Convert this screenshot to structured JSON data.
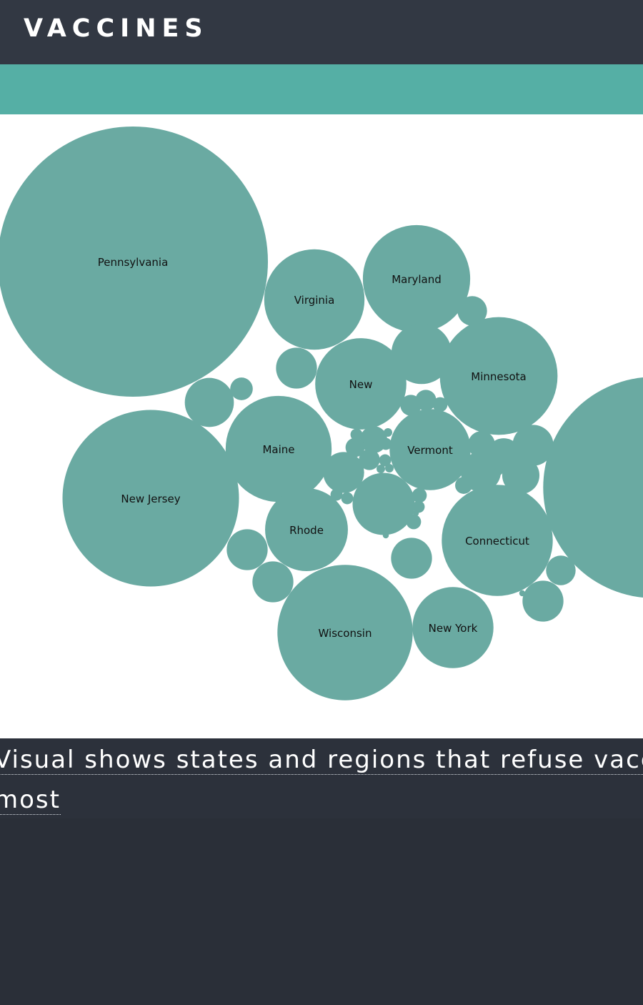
{
  "header": {
    "title": "VACCINES"
  },
  "caption": {
    "line1": "Visual shows states and regions that refuse vaccines the",
    "line2": "most"
  },
  "colors": {
    "header_bg": "#323843",
    "band": "#55afa5",
    "bubble": "#6aaaa2",
    "caption_bg": "#2c313b"
  },
  "chart_data": {
    "type": "packed-bubble",
    "bubbles": [
      {
        "label": "Pennsylvania",
        "value": 100
      },
      {
        "label": "New",
        "value": 67
      },
      {
        "label": "New Jersey",
        "value": 42.7
      },
      {
        "label": "Wisconsin",
        "value": 25.1
      },
      {
        "label": "Minnesota",
        "value": 19
      },
      {
        "label": "Virginia",
        "value": 13.8
      },
      {
        "label": "Connecticut",
        "value": 16.9
      },
      {
        "label": "Maryland",
        "value": 15.8
      },
      {
        "label": "New",
        "value": 11.4
      },
      {
        "label": "Maine",
        "value": 15.4
      },
      {
        "label": "Rhode",
        "value": 9.4
      },
      {
        "label": "Vermont",
        "value": 9
      },
      {
        "label": "New York",
        "value": 9
      },
      {
        "label": "",
        "value": 5
      },
      {
        "label": "",
        "value": 5.3
      },
      {
        "label": "",
        "value": 3.3
      },
      {
        "label": "",
        "value": 2.3
      },
      {
        "label": "",
        "value": 2.3
      },
      {
        "label": "",
        "value": 2.3
      },
      {
        "label": "",
        "value": 2.3
      },
      {
        "label": "",
        "value": 2.3
      },
      {
        "label": "",
        "value": 2.3
      },
      {
        "label": "",
        "value": 2.3
      },
      {
        "label": "",
        "value": 2.2
      },
      {
        "label": "",
        "value": 1.9
      },
      {
        "label": "",
        "value": 1.6
      },
      {
        "label": "",
        "value": 1.2
      },
      {
        "label": "",
        "value": 1.2
      },
      {
        "label": "",
        "value": 1.0
      },
      {
        "label": "",
        "value": 1.0
      },
      {
        "label": "",
        "value": 0.7
      },
      {
        "label": "",
        "value": 0.6
      },
      {
        "label": "",
        "value": 0.6
      },
      {
        "label": "",
        "value": 0.6
      },
      {
        "label": "",
        "value": 0.5
      },
      {
        "label": "",
        "value": 0.4
      },
      {
        "label": "",
        "value": 0.3
      },
      {
        "label": "",
        "value": 0.3
      },
      {
        "label": "",
        "value": 0.3
      },
      {
        "label": "",
        "value": 0.2
      },
      {
        "label": "",
        "value": 0.2
      },
      {
        "label": "",
        "value": 0.2
      },
      {
        "label": "",
        "value": 0.2
      },
      {
        "label": "",
        "value": 0.2
      },
      {
        "label": "",
        "value": 0.2
      },
      {
        "label": "",
        "value": 0.1
      },
      {
        "label": "",
        "value": 0.1
      },
      {
        "label": "",
        "value": 0.1
      },
      {
        "label": "",
        "value": 0.1
      },
      {
        "label": "",
        "value": 0.05
      },
      {
        "label": "",
        "value": 0.05
      },
      {
        "label": "",
        "value": 0.05
      }
    ]
  }
}
